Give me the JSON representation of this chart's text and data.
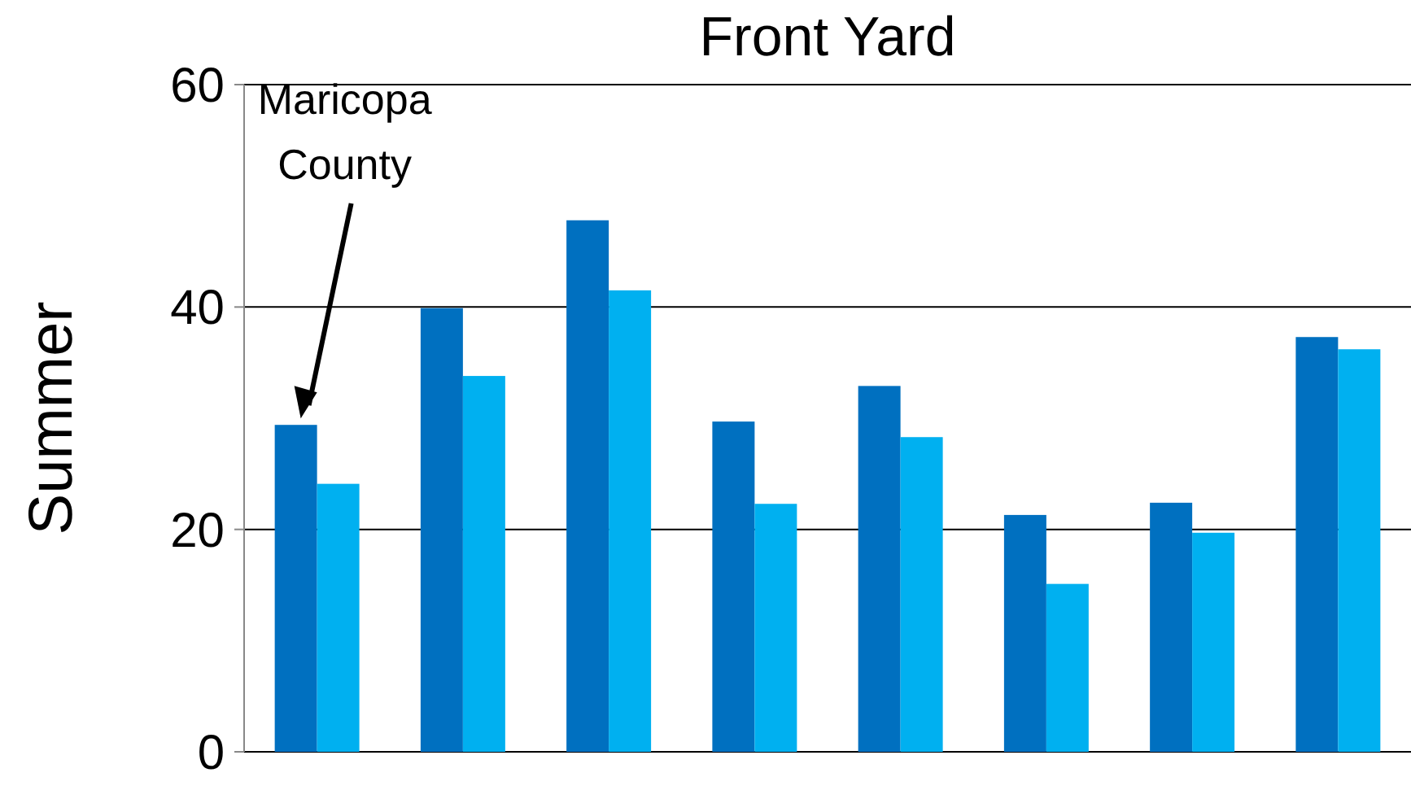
{
  "chart_data": {
    "type": "bar",
    "title": "Front Yard",
    "ylabel": "Summer",
    "categories": [
      null,
      null,
      null,
      null,
      null,
      null,
      null,
      null
    ],
    "series": [
      {
        "color": "#0070c0",
        "values": [
          29.4,
          39.9,
          47.8,
          29.7,
          32.9,
          21.3,
          22.4,
          37.3
        ]
      },
      {
        "color": "#00b0f0",
        "values": [
          24.1,
          33.8,
          41.5,
          22.3,
          28.3,
          15.1,
          19.7,
          36.2
        ]
      }
    ],
    "ylim": [
      0,
      60
    ],
    "yticks": [
      0,
      20,
      40,
      60
    ],
    "grid": "y",
    "annotations": [
      "Maricopa County"
    ]
  }
}
